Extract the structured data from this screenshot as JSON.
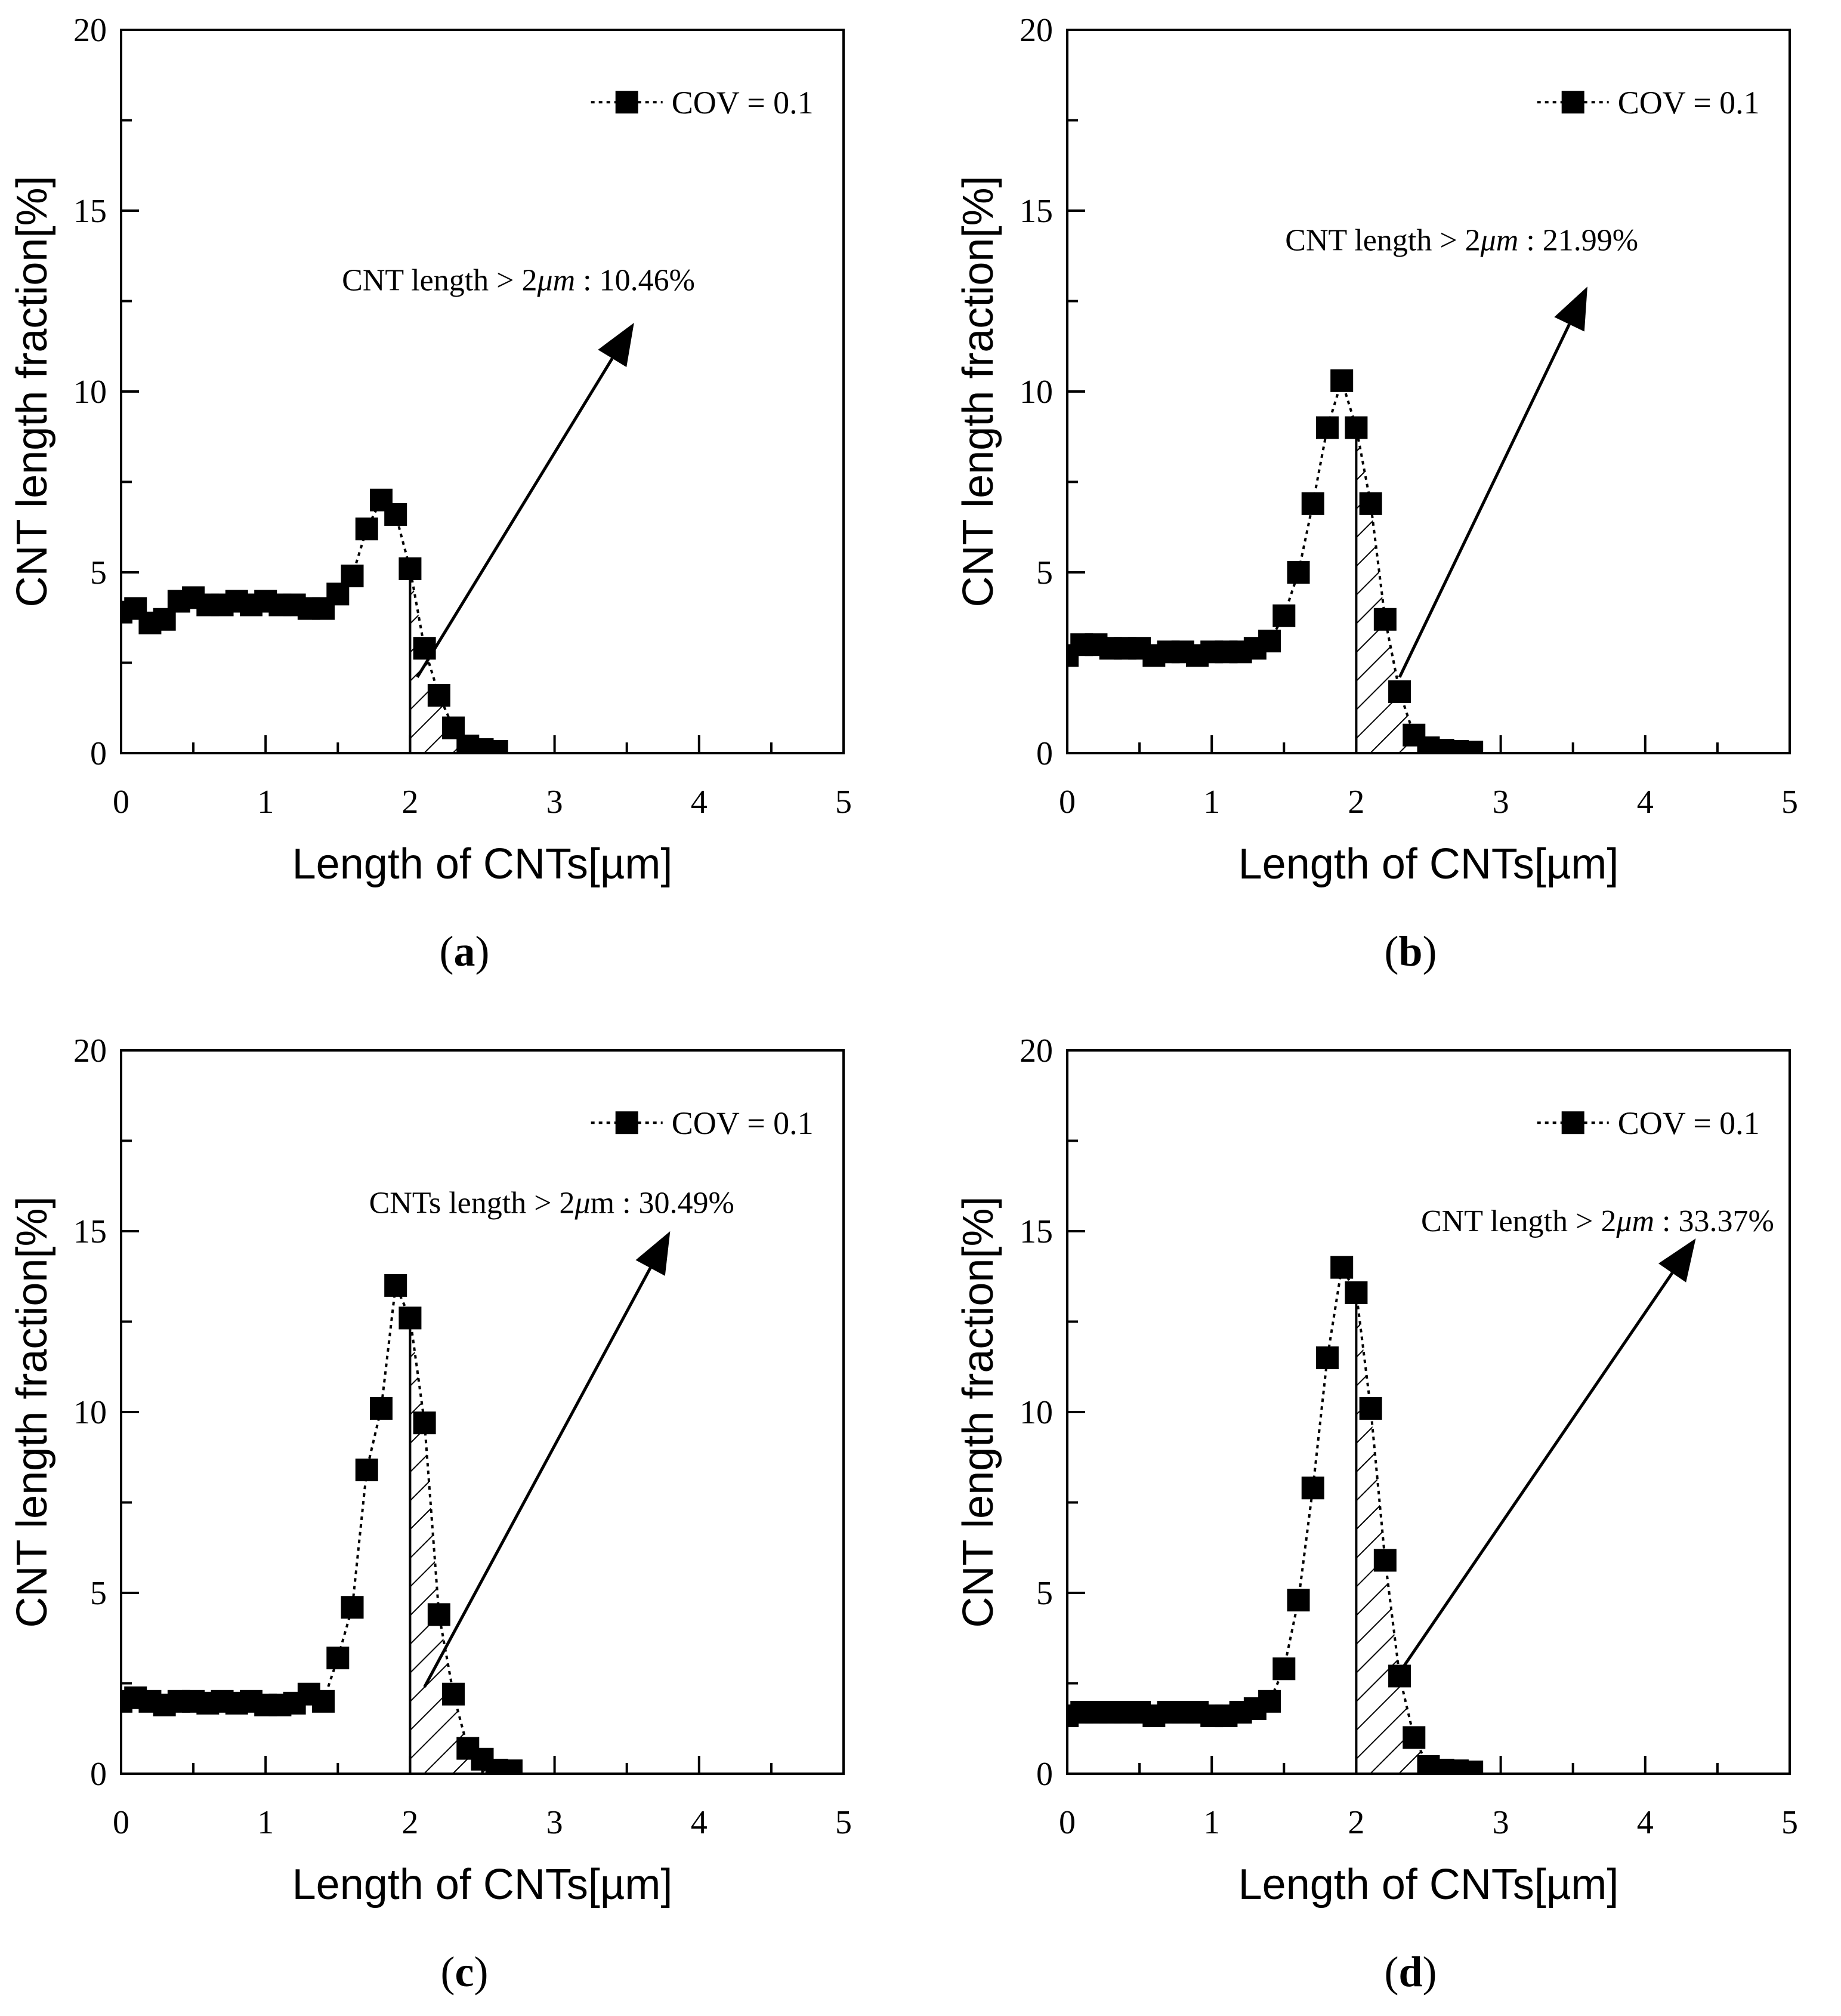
{
  "figure": {
    "colors": {
      "axis": "#000000",
      "marker": "#000000",
      "background": "#ffffff"
    }
  },
  "chart_data": [
    {
      "type": "line",
      "panel_label": "a",
      "ylabel": "CNT length fraction[%]",
      "xlabel": "Length of  CNTs[µm]",
      "xlim": [
        0,
        5
      ],
      "ylim": [
        0,
        20
      ],
      "xticks": [
        "0",
        "1",
        "2",
        "3",
        "4",
        "5"
      ],
      "yticks": [
        "0",
        "5",
        "10",
        "15",
        "20"
      ],
      "legend": {
        "label": "COV = 0.1",
        "position": "top-right",
        "marker": "square",
        "line": "dotted"
      },
      "annotation": {
        "prefix": "CNT length > 2",
        "unit": "μm",
        "suffix": " : 10.46%",
        "unit_italic": true,
        "arrow_from": [
          2.05,
          2.1
        ],
        "arrow_to": [
          3.55,
          11.9
        ],
        "text_at": [
          2.75,
          12.8
        ]
      },
      "hatched_region": [
        2,
        2.7
      ],
      "series": [
        {
          "name": "COV = 0.1",
          "x": [
            0.0,
            0.1,
            0.2,
            0.3,
            0.4,
            0.5,
            0.6,
            0.7,
            0.8,
            0.9,
            1.0,
            1.1,
            1.2,
            1.3,
            1.4,
            1.5,
            1.6,
            1.7,
            1.8,
            1.9,
            2.0,
            2.1,
            2.2,
            2.3,
            2.4,
            2.5,
            2.6
          ],
          "y": [
            3.9,
            4.0,
            3.6,
            3.7,
            4.2,
            4.3,
            4.1,
            4.1,
            4.2,
            4.1,
            4.2,
            4.1,
            4.1,
            4.0,
            4.0,
            4.4,
            4.9,
            6.2,
            7.0,
            6.6,
            5.1,
            2.9,
            1.6,
            0.7,
            0.2,
            0.1,
            0.05
          ]
        }
      ]
    },
    {
      "type": "line",
      "panel_label": "b",
      "ylabel": "CNT length fraction[%]",
      "xlabel": "Length of  CNTs[µm]",
      "xlim": [
        0,
        5
      ],
      "ylim": [
        0,
        20
      ],
      "xticks": [
        "0",
        "1",
        "2",
        "3",
        "4",
        "5"
      ],
      "yticks": [
        "0",
        "5",
        "10",
        "15",
        "20"
      ],
      "legend": {
        "label": "COV = 0.1",
        "position": "top-right",
        "marker": "square",
        "line": "dotted"
      },
      "annotation": {
        "prefix": "CNT length > 2",
        "unit": "μm",
        "suffix": " : 21.99%",
        "unit_italic": true,
        "arrow_from": [
          2.3,
          2.1
        ],
        "arrow_to": [
          3.6,
          12.9
        ],
        "text_at": [
          2.73,
          13.9
        ]
      },
      "hatched_region": [
        2,
        2.9
      ],
      "series": [
        {
          "name": "COV = 0.1",
          "x": [
            0.0,
            0.1,
            0.2,
            0.3,
            0.4,
            0.5,
            0.6,
            0.7,
            0.8,
            0.9,
            1.0,
            1.1,
            1.2,
            1.3,
            1.4,
            1.5,
            1.6,
            1.7,
            1.8,
            1.9,
            2.0,
            2.1,
            2.2,
            2.3,
            2.4,
            2.5,
            2.6,
            2.7,
            2.8
          ],
          "y": [
            2.7,
            3.0,
            3.0,
            2.9,
            2.9,
            2.9,
            2.7,
            2.8,
            2.8,
            2.7,
            2.8,
            2.8,
            2.8,
            2.9,
            3.1,
            3.8,
            5.0,
            6.9,
            9.0,
            10.3,
            9.0,
            6.9,
            3.7,
            1.7,
            0.5,
            0.15,
            0.08,
            0.05,
            0.03
          ]
        }
      ]
    },
    {
      "type": "line",
      "panel_label": "c",
      "ylabel": "CNT length fraction[%]",
      "xlabel": "Length of  CNTs[µm]",
      "xlim": [
        0,
        5
      ],
      "ylim": [
        0,
        20
      ],
      "xticks": [
        "0",
        "1",
        "2",
        "3",
        "4",
        "5"
      ],
      "yticks": [
        "0",
        "5",
        "10",
        "15",
        "20"
      ],
      "legend": {
        "label": "COV = 0.1",
        "position": "top-right",
        "marker": "square",
        "line": "dotted"
      },
      "annotation": {
        "prefix": "CNTs length > 2",
        "unit": "μ",
        "suffix": "m : 30.49%",
        "unit_italic": true,
        "arrow_from": [
          2.1,
          2.4
        ],
        "arrow_to": [
          3.8,
          15.0
        ],
        "text_at": [
          2.98,
          15.5
        ]
      },
      "hatched_region": [
        2,
        2.7
      ],
      "series": [
        {
          "name": "COV = 0.1",
          "x": [
            0.0,
            0.1,
            0.2,
            0.3,
            0.4,
            0.5,
            0.6,
            0.7,
            0.8,
            0.9,
            1.0,
            1.1,
            1.2,
            1.3,
            1.4,
            1.5,
            1.6,
            1.7,
            1.8,
            1.9,
            2.0,
            2.1,
            2.2,
            2.3,
            2.4,
            2.5,
            2.6,
            2.7
          ],
          "y": [
            2.0,
            2.1,
            2.0,
            1.9,
            2.0,
            2.0,
            1.95,
            2.0,
            1.95,
            2.0,
            1.9,
            1.9,
            1.95,
            2.2,
            2.0,
            3.2,
            4.6,
            8.4,
            10.1,
            13.5,
            12.6,
            9.7,
            4.4,
            2.2,
            0.7,
            0.4,
            0.1,
            0.08
          ]
        }
      ]
    },
    {
      "type": "line",
      "panel_label": "d",
      "ylabel": "CNT length fraction[%]",
      "xlabel": "Length of  CNTs[µm]",
      "xlim": [
        0,
        5
      ],
      "ylim": [
        0,
        20
      ],
      "xticks": [
        "0",
        "1",
        "2",
        "3",
        "4",
        "5"
      ],
      "yticks": [
        "0",
        "5",
        "10",
        "15",
        "20"
      ],
      "legend": {
        "label": "COV = 0.1",
        "position": "top-right",
        "marker": "square",
        "line": "dotted"
      },
      "annotation": {
        "prefix": "CNT length > 2",
        "unit": "μm",
        "suffix": " : 33.37%",
        "unit_italic": true,
        "arrow_from": [
          2.3,
          2.8
        ],
        "arrow_to": [
          4.35,
          14.8
        ],
        "text_at": [
          3.67,
          15.0
        ]
      },
      "hatched_region": [
        2,
        2.85
      ],
      "series": [
        {
          "name": "COV = 0.1",
          "x": [
            0.0,
            0.1,
            0.2,
            0.3,
            0.4,
            0.5,
            0.6,
            0.7,
            0.8,
            0.9,
            1.0,
            1.1,
            1.2,
            1.3,
            1.4,
            1.5,
            1.6,
            1.7,
            1.8,
            1.9,
            2.0,
            2.1,
            2.2,
            2.3,
            2.4,
            2.5,
            2.6,
            2.7,
            2.8
          ],
          "y": [
            1.6,
            1.7,
            1.7,
            1.7,
            1.7,
            1.7,
            1.6,
            1.7,
            1.7,
            1.7,
            1.6,
            1.6,
            1.7,
            1.8,
            2.0,
            2.9,
            4.8,
            7.9,
            11.5,
            14.0,
            13.3,
            10.1,
            5.9,
            2.7,
            1.0,
            0.2,
            0.1,
            0.08,
            0.05
          ]
        }
      ]
    }
  ]
}
